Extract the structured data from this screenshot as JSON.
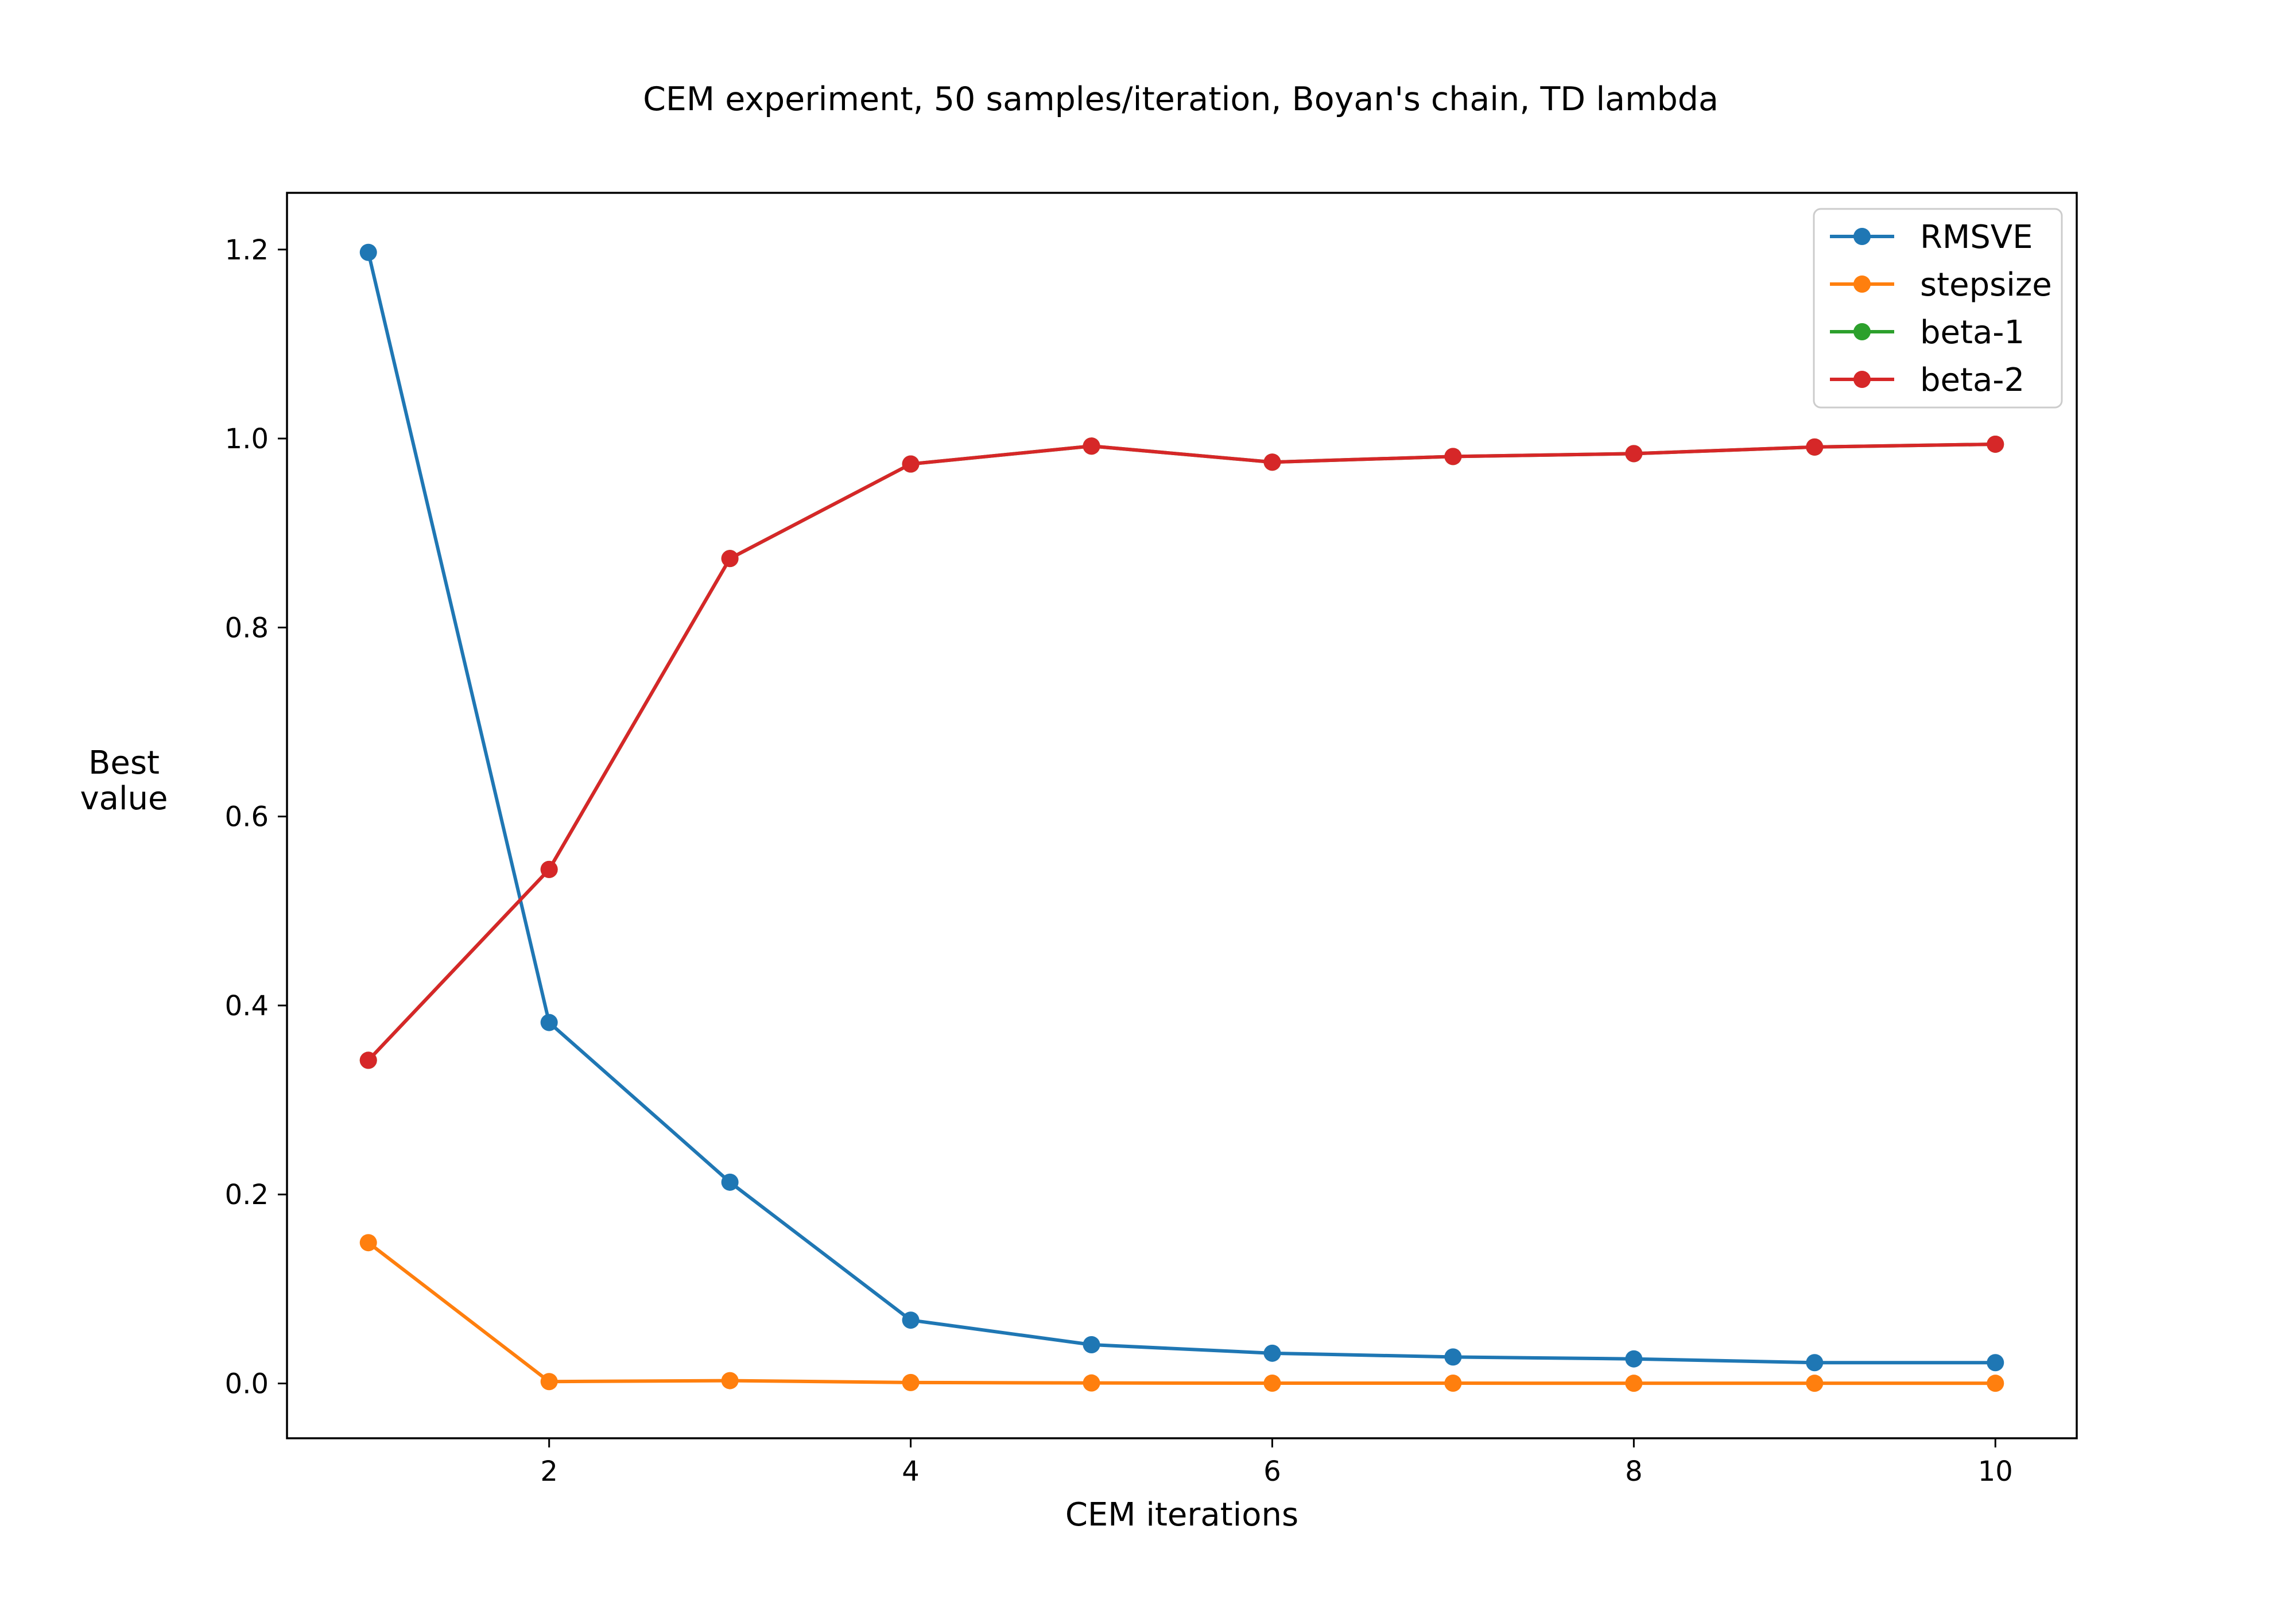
{
  "chart_data": {
    "type": "line",
    "title": "CEM experiment, 50 samples/iteration, Boyan's chain, TD lambda",
    "xlabel": "CEM iterations",
    "ylabel_lines": [
      "Best",
      "value"
    ],
    "x": [
      1,
      2,
      3,
      4,
      5,
      6,
      7,
      8,
      9,
      10
    ],
    "xlim": [
      0.55,
      10.45
    ],
    "ylim": [
      -0.058,
      1.26
    ],
    "xticks": [
      2,
      4,
      6,
      8,
      10
    ],
    "yticks": [
      0.0,
      0.2,
      0.4,
      0.6,
      0.8,
      1.0,
      1.2
    ],
    "xtick_labels": [
      "2",
      "4",
      "6",
      "8",
      "10"
    ],
    "ytick_labels": [
      "0.0",
      "0.2",
      "0.4",
      "0.6",
      "0.8",
      "1.0",
      "1.2"
    ],
    "grid": false,
    "legend_position": "top-right",
    "series": [
      {
        "name": "RMSVE",
        "color": "#1f77b4",
        "marker": "circle",
        "values": [
          1.197,
          0.382,
          0.213,
          0.067,
          0.041,
          0.032,
          0.028,
          0.026,
          0.022,
          0.022
        ]
      },
      {
        "name": "stepsize",
        "color": "#ff7f0e",
        "marker": "circle",
        "values": [
          0.149,
          0.002,
          0.003,
          0.001,
          0.0005,
          0.0003,
          0.0003,
          0.0002,
          0.0002,
          0.0002
        ]
      },
      {
        "name": "beta-1",
        "color": "#2ca02c",
        "marker": "circle",
        "values": [
          0.342,
          0.544,
          0.873,
          0.973,
          0.992,
          0.975,
          0.981,
          0.984,
          0.991,
          0.994
        ]
      },
      {
        "name": "beta-2",
        "color": "#d62728",
        "marker": "circle",
        "values": [
          0.342,
          0.544,
          0.873,
          0.973,
          0.992,
          0.975,
          0.981,
          0.984,
          0.991,
          0.994
        ]
      }
    ]
  }
}
